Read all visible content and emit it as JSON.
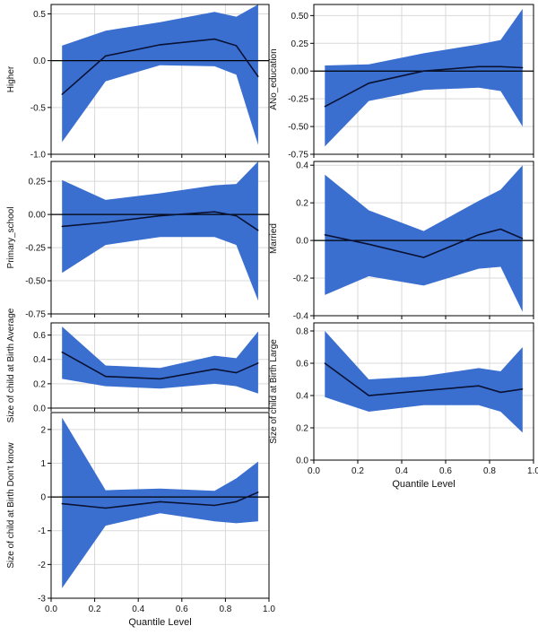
{
  "colors": {
    "band": "#3a6fd0",
    "line": "#0a1233",
    "zero": "#000000",
    "grid": "#d9d9d9",
    "frame": "#000000"
  },
  "chart_data": [
    {
      "type": "area",
      "ylabel": "Higher",
      "ylim": [
        -1.0,
        0.6
      ],
      "yticks": [
        -1.0,
        -0.5,
        0.0,
        0.5
      ],
      "ytick_labels": [
        "-1.0",
        "-0.5",
        "0.0",
        "0.5"
      ],
      "xlim": [
        0,
        1
      ],
      "x": [
        0.05,
        0.25,
        0.5,
        0.75,
        0.85,
        0.95
      ],
      "estimate": [
        -0.36,
        0.05,
        0.17,
        0.23,
        0.16,
        -0.17
      ],
      "lower": [
        -0.87,
        -0.22,
        -0.05,
        -0.06,
        -0.15,
        -0.9
      ],
      "upper": [
        0.16,
        0.32,
        0.41,
        0.52,
        0.47,
        0.6
      ],
      "xlabel": ""
    },
    {
      "type": "area",
      "ylabel": "ANo_education",
      "ylim": [
        -0.75,
        0.6
      ],
      "yticks": [
        -0.75,
        -0.5,
        -0.25,
        0.0,
        0.25,
        0.5
      ],
      "ytick_labels": [
        "-0.75",
        "-0.50",
        "-0.25",
        "0.00",
        "0.25",
        "0.50"
      ],
      "xlim": [
        0,
        1
      ],
      "x": [
        0.05,
        0.25,
        0.5,
        0.75,
        0.85,
        0.95
      ],
      "estimate": [
        -0.32,
        -0.11,
        0.0,
        0.04,
        0.04,
        0.03
      ],
      "lower": [
        -0.68,
        -0.27,
        -0.17,
        -0.15,
        -0.18,
        -0.5
      ],
      "upper": [
        0.05,
        0.06,
        0.16,
        0.24,
        0.28,
        0.56
      ],
      "xlabel": ""
    },
    {
      "type": "area",
      "ylabel": "Primary_school",
      "ylim": [
        -0.75,
        0.4
      ],
      "yticks": [
        -0.75,
        -0.5,
        -0.25,
        0.0,
        0.25
      ],
      "ytick_labels": [
        "-0.75",
        "-0.50",
        "-0.25",
        "0.00",
        "0.25"
      ],
      "xlim": [
        0,
        1
      ],
      "x": [
        0.05,
        0.25,
        0.5,
        0.75,
        0.85,
        0.95
      ],
      "estimate": [
        -0.09,
        -0.06,
        -0.01,
        0.02,
        -0.01,
        -0.12
      ],
      "lower": [
        -0.44,
        -0.23,
        -0.17,
        -0.17,
        -0.23,
        -0.65
      ],
      "upper": [
        0.26,
        0.11,
        0.16,
        0.22,
        0.23,
        0.4
      ],
      "xlabel": ""
    },
    {
      "type": "area",
      "ylabel": "Married",
      "ylim": [
        -0.4,
        0.42
      ],
      "yticks": [
        -0.4,
        -0.2,
        0.0,
        0.2,
        0.4
      ],
      "ytick_labels": [
        "-0.4",
        "-0.2",
        "0.0",
        "0.2",
        "0.4"
      ],
      "xlim": [
        0,
        1
      ],
      "x": [
        0.05,
        0.25,
        0.5,
        0.75,
        0.85,
        0.95
      ],
      "estimate": [
        0.03,
        -0.02,
        -0.09,
        0.03,
        0.06,
        0.01
      ],
      "lower": [
        -0.29,
        -0.19,
        -0.24,
        -0.15,
        -0.14,
        -0.38
      ],
      "upper": [
        0.35,
        0.16,
        0.05,
        0.21,
        0.27,
        0.4
      ],
      "xlabel": ""
    },
    {
      "type": "area",
      "ylabel": "Size of child at Birth Average",
      "ylim": [
        0.0,
        0.7
      ],
      "yticks": [
        0.0,
        0.2,
        0.4,
        0.6
      ],
      "ytick_labels": [
        "0.0",
        "0.2",
        "0.4",
        "0.6"
      ],
      "xlim": [
        0,
        1
      ],
      "x": [
        0.05,
        0.25,
        0.5,
        0.75,
        0.85,
        0.95
      ],
      "estimate": [
        0.46,
        0.26,
        0.24,
        0.32,
        0.29,
        0.37
      ],
      "lower": [
        0.24,
        0.18,
        0.16,
        0.2,
        0.18,
        0.12
      ],
      "upper": [
        0.67,
        0.35,
        0.33,
        0.43,
        0.41,
        0.63
      ],
      "xlabel": ""
    },
    {
      "type": "area",
      "ylabel": "Size of child at Birth Large",
      "ylim": [
        0.0,
        0.85
      ],
      "yticks": [
        0.0,
        0.2,
        0.4,
        0.6,
        0.8
      ],
      "ytick_labels": [
        "0.0",
        "0.2",
        "0.4",
        "0.6",
        "0.8"
      ],
      "xlim": [
        0,
        1
      ],
      "x": [
        0.05,
        0.25,
        0.5,
        0.75,
        0.85,
        0.95
      ],
      "estimate": [
        0.6,
        0.4,
        0.43,
        0.46,
        0.42,
        0.44
      ],
      "lower": [
        0.39,
        0.3,
        0.34,
        0.34,
        0.3,
        0.17
      ],
      "upper": [
        0.8,
        0.5,
        0.52,
        0.57,
        0.55,
        0.7
      ],
      "xticks": [
        0.0,
        0.2,
        0.4,
        0.6,
        0.8,
        1.0
      ],
      "xtick_labels": [
        "0.0",
        "0.2",
        "0.4",
        "0.6",
        "0.8",
        "1.0"
      ],
      "xlabel": "Quantile Level"
    },
    {
      "type": "area",
      "ylabel": "Size of child at Birth Don't know",
      "ylim": [
        -3.0,
        2.5
      ],
      "yticks": [
        -3,
        -2,
        -1,
        0,
        1,
        2
      ],
      "ytick_labels": [
        "-3",
        "-2",
        "-1",
        "0",
        "1",
        "2"
      ],
      "xlim": [
        0,
        1
      ],
      "x": [
        0.05,
        0.25,
        0.5,
        0.75,
        0.85,
        0.95
      ],
      "estimate": [
        -0.2,
        -0.33,
        -0.14,
        -0.25,
        -0.14,
        0.14
      ],
      "lower": [
        -2.7,
        -0.85,
        -0.48,
        -0.72,
        -0.78,
        -0.72
      ],
      "upper": [
        2.35,
        0.2,
        0.25,
        0.18,
        0.55,
        1.05
      ],
      "xticks": [
        0.0,
        0.2,
        0.4,
        0.6,
        0.8,
        1.0
      ],
      "xtick_labels": [
        "0.0",
        "0.2",
        "0.4",
        "0.6",
        "0.8",
        "1.0"
      ],
      "xlabel": "Quantile Level"
    }
  ]
}
